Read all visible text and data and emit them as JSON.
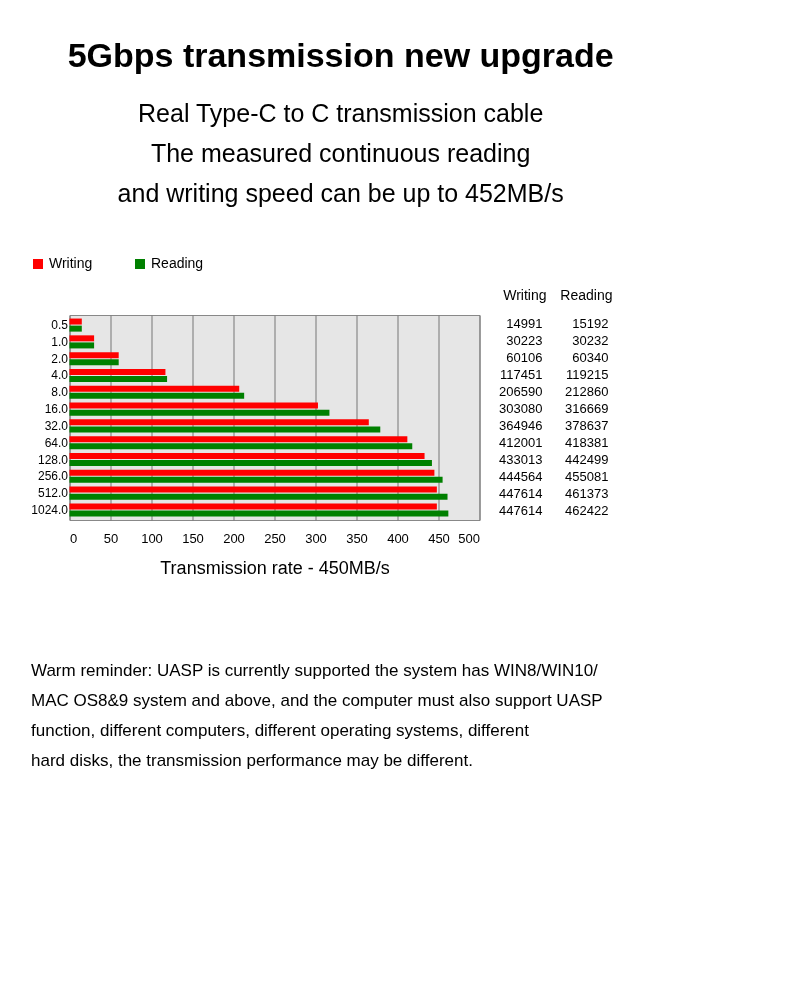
{
  "chart_data": {
    "type": "bar",
    "orientation": "horizontal",
    "title": "5Gbps transmission new upgrade",
    "subtitle": "Real Type-C to C transmission cable\nThe measured continuous reading\nand writing speed can be up to 452MB/s",
    "xlabel": "Transmission rate - 450MB/s",
    "categories": [
      "0.5",
      "1.0",
      "2.0",
      "4.0",
      "8.0",
      "16.0",
      "32.0",
      "64.0",
      "128.0",
      "256.0",
      "512.0",
      "1024.0"
    ],
    "series": [
      {
        "name": "Writing",
        "color": "#ff0000",
        "values": [
          15,
          30,
          60,
          117,
          207,
          303,
          365,
          412,
          433,
          445,
          448,
          448
        ]
      },
      {
        "name": "Reading",
        "color": "#008000",
        "values": [
          15,
          30,
          60,
          119,
          213,
          317,
          379,
          418,
          442,
          455,
          461,
          462
        ]
      }
    ],
    "xlim": [
      0,
      500
    ],
    "xticks": [
      0,
      50,
      100,
      150,
      200,
      250,
      300,
      350,
      400,
      450,
      500
    ],
    "grid": "x",
    "legend": "top",
    "annotations": [
      "Writing",
      "Reading",
      "14991",
      "15192",
      "30223",
      "30232",
      "60106",
      "60340",
      "117451",
      "119215",
      "206590",
      "212860",
      "303080",
      "316669",
      "364946",
      "378637",
      "412001",
      "418381",
      "433013",
      "442499",
      "444564",
      "455081",
      "447614",
      "461373",
      "447614",
      "462422",
      "Warm reminder: UASP is currently supported the system has WIN8/WIN10/ MAC OS8&9 system and above, and the computer must also support UASP function, different computers, different operating systems, different hard disks, the transmission performance may be different."
    ]
  }
}
